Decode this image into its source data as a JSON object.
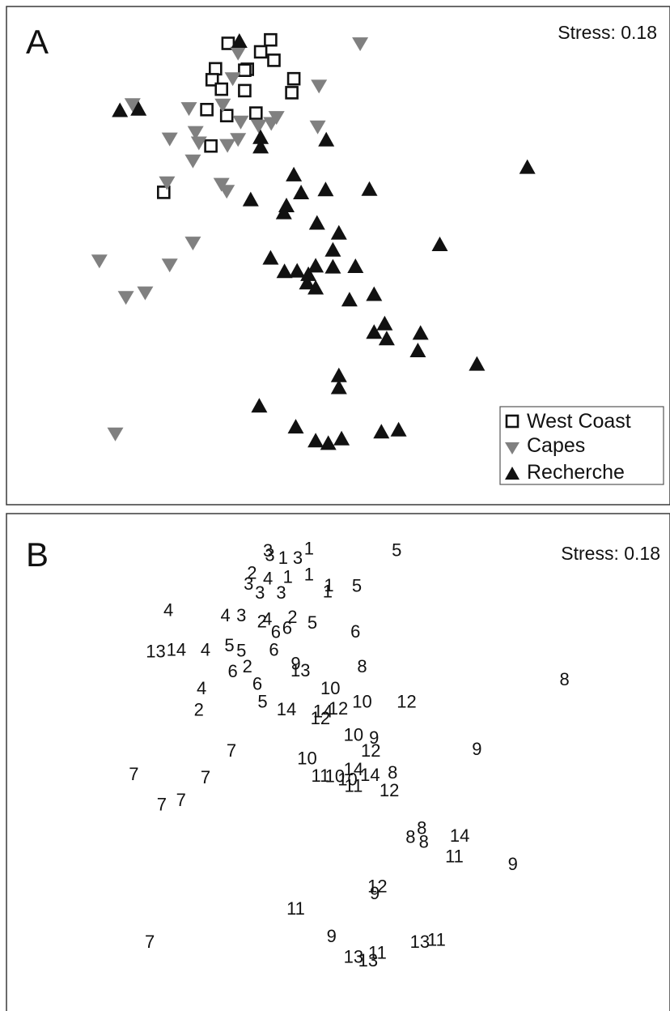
{
  "chart_data": [
    {
      "type": "scatter",
      "panel_label": "A",
      "stress_text": "Stress: 0.18",
      "xlim": [
        0,
        100
      ],
      "ylim": [
        0,
        100
      ],
      "grid": false,
      "legend_position": "bottom-right",
      "series": [
        {
          "name": "West Coast",
          "marker": "open-square",
          "color": "#111111",
          "points": [
            [
              33.4,
              92.6
            ],
            [
              39.8,
              93.3
            ],
            [
              38.3,
              90.9
            ],
            [
              40.3,
              89.2
            ],
            [
              31.5,
              87.5
            ],
            [
              31.0,
              85.3
            ],
            [
              36.3,
              87.4
            ],
            [
              35.9,
              87.2
            ],
            [
              32.4,
              83.4
            ],
            [
              35.9,
              83.1
            ],
            [
              43.3,
              85.5
            ],
            [
              43.0,
              82.7
            ],
            [
              30.2,
              79.3
            ],
            [
              33.2,
              78.1
            ],
            [
              37.6,
              78.6
            ],
            [
              30.8,
              72.0
            ],
            [
              23.7,
              62.7
            ]
          ]
        },
        {
          "name": "Capes",
          "color": "#808080",
          "marker": "down-triangle",
          "points": [
            [
              53.3,
              92.5
            ],
            [
              34.9,
              90.6
            ],
            [
              34.1,
              85.5
            ],
            [
              47.1,
              84.0
            ],
            [
              19.0,
              80.3
            ],
            [
              27.5,
              79.5
            ],
            [
              32.6,
              80.2
            ],
            [
              40.7,
              77.7
            ],
            [
              46.9,
              75.8
            ],
            [
              35.3,
              76.8
            ],
            [
              38.0,
              76.0
            ],
            [
              39.9,
              76.5
            ],
            [
              24.6,
              73.4
            ],
            [
              28.5,
              74.7
            ],
            [
              34.9,
              73.3
            ],
            [
              29.0,
              72.6
            ],
            [
              33.3,
              72.1
            ],
            [
              28.1,
              69.0
            ],
            [
              24.2,
              64.6
            ],
            [
              32.4,
              64.3
            ],
            [
              33.2,
              62.9
            ],
            [
              28.1,
              52.5
            ],
            [
              14.0,
              48.9
            ],
            [
              24.6,
              48.1
            ],
            [
              18.0,
              41.6
            ],
            [
              20.9,
              42.5
            ],
            [
              16.4,
              14.2
            ]
          ]
        },
        {
          "name": "Recherche",
          "color": "#111111",
          "marker": "up-triangle",
          "points": [
            [
              35.1,
              93.0
            ],
            [
              17.1,
              79.1
            ],
            [
              19.9,
              79.4
            ],
            [
              38.3,
              73.7
            ],
            [
              38.3,
              71.8
            ],
            [
              48.2,
              73.2
            ],
            [
              78.5,
              67.7
            ],
            [
              43.3,
              66.2
            ],
            [
              44.4,
              62.6
            ],
            [
              48.1,
              63.2
            ],
            [
              54.7,
              63.3
            ],
            [
              36.8,
              61.2
            ],
            [
              42.2,
              60.0
            ],
            [
              41.8,
              58.6
            ],
            [
              46.8,
              56.5
            ],
            [
              50.1,
              54.5
            ],
            [
              49.2,
              51.1
            ],
            [
              65.3,
              52.2
            ],
            [
              39.8,
              49.5
            ],
            [
              41.9,
              46.8
            ],
            [
              43.8,
              46.9
            ],
            [
              45.5,
              46.2
            ],
            [
              46.6,
              47.9
            ],
            [
              49.2,
              47.7
            ],
            [
              52.6,
              47.8
            ],
            [
              45.3,
              44.5
            ],
            [
              46.6,
              43.5
            ],
            [
              51.7,
              41.1
            ],
            [
              55.4,
              42.2
            ],
            [
              57.0,
              36.3
            ],
            [
              55.4,
              34.6
            ],
            [
              57.3,
              33.3
            ],
            [
              62.4,
              34.4
            ],
            [
              62.0,
              30.9
            ],
            [
              70.9,
              28.2
            ],
            [
              50.1,
              25.9
            ],
            [
              50.1,
              23.5
            ],
            [
              38.1,
              19.8
            ],
            [
              43.6,
              15.6
            ],
            [
              46.6,
              12.8
            ],
            [
              48.5,
              12.3
            ],
            [
              50.5,
              13.2
            ],
            [
              56.5,
              14.6
            ],
            [
              59.1,
              15.0
            ]
          ]
        }
      ]
    },
    {
      "type": "scatter",
      "panel_label": "B",
      "stress_text": "Stress: 0.18",
      "xlim": [
        0,
        100
      ],
      "ylim": [
        0,
        100
      ],
      "grid": false,
      "points": [
        {
          "label": "1",
          "x": 45.6,
          "y": 93.0
        },
        {
          "label": "3",
          "x": 39.7,
          "y": 91.7
        },
        {
          "label": "1",
          "x": 41.7,
          "y": 91.1
        },
        {
          "label": "3",
          "x": 43.9,
          "y": 91.1
        },
        {
          "label": "3",
          "x": 39.4,
          "y": 92.6
        },
        {
          "label": "5",
          "x": 58.8,
          "y": 92.7
        },
        {
          "label": "2",
          "x": 37.0,
          "y": 88.1
        },
        {
          "label": "4",
          "x": 39.4,
          "y": 87.0
        },
        {
          "label": "1",
          "x": 42.4,
          "y": 87.3
        },
        {
          "label": "1",
          "x": 45.6,
          "y": 87.8
        },
        {
          "label": "3",
          "x": 36.5,
          "y": 85.9
        },
        {
          "label": "3",
          "x": 38.2,
          "y": 84.1
        },
        {
          "label": "3",
          "x": 41.4,
          "y": 84.1
        },
        {
          "label": "1",
          "x": 48.6,
          "y": 85.6
        },
        {
          "label": "1",
          "x": 48.4,
          "y": 84.4
        },
        {
          "label": "5",
          "x": 52.8,
          "y": 85.5
        },
        {
          "label": "4",
          "x": 24.4,
          "y": 80.6
        },
        {
          "label": "4",
          "x": 33.0,
          "y": 79.6
        },
        {
          "label": "3",
          "x": 35.4,
          "y": 79.6
        },
        {
          "label": "2",
          "x": 38.5,
          "y": 78.3
        },
        {
          "label": "4",
          "x": 39.3,
          "y": 78.8
        },
        {
          "label": "2",
          "x": 43.1,
          "y": 79.2
        },
        {
          "label": "5",
          "x": 46.1,
          "y": 78.1
        },
        {
          "label": "6",
          "x": 40.6,
          "y": 76.2
        },
        {
          "label": "6",
          "x": 42.3,
          "y": 77.0
        },
        {
          "label": "6",
          "x": 52.6,
          "y": 76.3
        },
        {
          "label": "13",
          "x": 22.5,
          "y": 72.3
        },
        {
          "label": "14",
          "x": 25.6,
          "y": 72.6
        },
        {
          "label": "4",
          "x": 30.0,
          "y": 72.6
        },
        {
          "label": "5",
          "x": 33.6,
          "y": 73.5
        },
        {
          "label": "5",
          "x": 35.4,
          "y": 72.5
        },
        {
          "label": "6",
          "x": 40.3,
          "y": 72.6
        },
        {
          "label": "9",
          "x": 43.6,
          "y": 69.9
        },
        {
          "label": "13",
          "x": 44.3,
          "y": 68.5
        },
        {
          "label": "8",
          "x": 53.6,
          "y": 69.3
        },
        {
          "label": "6",
          "x": 34.1,
          "y": 68.3
        },
        {
          "label": "2",
          "x": 36.3,
          "y": 69.3
        },
        {
          "label": "6",
          "x": 37.8,
          "y": 65.8
        },
        {
          "label": "4",
          "x": 29.4,
          "y": 64.9
        },
        {
          "label": "10",
          "x": 48.8,
          "y": 64.9
        },
        {
          "label": "8",
          "x": 84.1,
          "y": 66.7
        },
        {
          "label": "2",
          "x": 29.0,
          "y": 60.6
        },
        {
          "label": "5",
          "x": 38.6,
          "y": 62.2
        },
        {
          "label": "14",
          "x": 42.2,
          "y": 60.7
        },
        {
          "label": "14",
          "x": 47.7,
          "y": 60.3
        },
        {
          "label": "12",
          "x": 50.0,
          "y": 60.8
        },
        {
          "label": "10",
          "x": 53.6,
          "y": 62.2
        },
        {
          "label": "12",
          "x": 60.3,
          "y": 62.2
        },
        {
          "label": "12",
          "x": 47.3,
          "y": 58.9
        },
        {
          "label": "10",
          "x": 52.3,
          "y": 55.5
        },
        {
          "label": "9",
          "x": 55.4,
          "y": 55.0
        },
        {
          "label": "12",
          "x": 54.9,
          "y": 52.4
        },
        {
          "label": "9",
          "x": 70.9,
          "y": 52.7
        },
        {
          "label": "7",
          "x": 33.9,
          "y": 52.4
        },
        {
          "label": "10",
          "x": 45.3,
          "y": 50.8
        },
        {
          "label": "14",
          "x": 52.3,
          "y": 48.6
        },
        {
          "label": "14",
          "x": 54.8,
          "y": 47.5
        },
        {
          "label": "8",
          "x": 58.2,
          "y": 48.0
        },
        {
          "label": "7",
          "x": 19.2,
          "y": 47.6
        },
        {
          "label": "7",
          "x": 30.0,
          "y": 47.0
        },
        {
          "label": "11",
          "x": 47.3,
          "y": 47.3
        },
        {
          "label": "10",
          "x": 49.5,
          "y": 47.2
        },
        {
          "label": "10",
          "x": 51.4,
          "y": 46.6
        },
        {
          "label": "11",
          "x": 52.3,
          "y": 45.3
        },
        {
          "label": "12",
          "x": 57.7,
          "y": 44.4
        },
        {
          "label": "7",
          "x": 23.4,
          "y": 41.5
        },
        {
          "label": "7",
          "x": 26.3,
          "y": 42.4
        },
        {
          "label": "8",
          "x": 62.6,
          "y": 36.8
        },
        {
          "label": "8",
          "x": 60.9,
          "y": 35.0
        },
        {
          "label": "8",
          "x": 62.9,
          "y": 34.0
        },
        {
          "label": "14",
          "x": 68.3,
          "y": 35.3
        },
        {
          "label": "11",
          "x": 67.5,
          "y": 31.1
        },
        {
          "label": "9",
          "x": 76.3,
          "y": 29.6
        },
        {
          "label": "12",
          "x": 55.9,
          "y": 25.1
        },
        {
          "label": "9",
          "x": 55.5,
          "y": 23.7
        },
        {
          "label": "11",
          "x": 43.6,
          "y": 20.6
        },
        {
          "label": "9",
          "x": 49.0,
          "y": 15.1
        },
        {
          "label": "7",
          "x": 21.6,
          "y": 13.9
        },
        {
          "label": "13",
          "x": 62.3,
          "y": 13.9
        },
        {
          "label": "11",
          "x": 64.8,
          "y": 14.3
        },
        {
          "label": "11",
          "x": 55.9,
          "y": 11.7
        },
        {
          "label": "13",
          "x": 52.3,
          "y": 10.9
        },
        {
          "label": "13",
          "x": 54.5,
          "y": 10.2
        }
      ]
    }
  ]
}
